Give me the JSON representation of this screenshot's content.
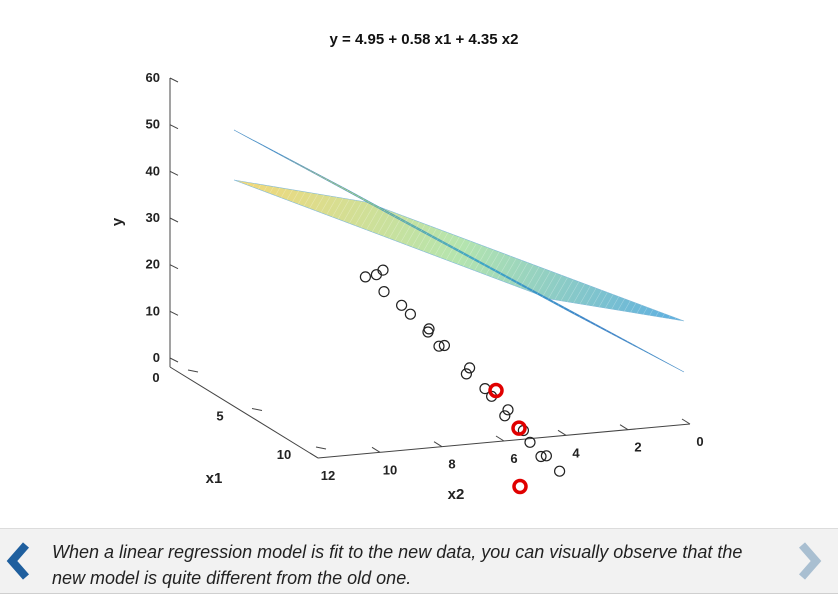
{
  "chart_data": {
    "type": "scatter",
    "title": "y = 4.95 + 0.58 x1 + 4.35 x2",
    "xlabel": "x1",
    "ylabel": "x2",
    "zlabel": "y",
    "x1_ticks": [
      "0",
      "5",
      "10"
    ],
    "x2_ticks": [
      "12",
      "10",
      "8",
      "6",
      "4",
      "2",
      "0"
    ],
    "y_ticks": [
      "0",
      "10",
      "20",
      "30",
      "40",
      "50",
      "60"
    ],
    "ylim": [
      0,
      60
    ],
    "planes": [
      {
        "corner_values": [
          49,
          20,
          8,
          34
        ]
      },
      {
        "corner_values": [
          38,
          20,
          16,
          31
        ]
      }
    ],
    "old_points": [
      {
        "x1": 2,
        "x2": 7.5,
        "y": 39
      },
      {
        "x1": 2,
        "x2": 7.8,
        "y": 37
      },
      {
        "x1": 3,
        "x2": 8.0,
        "y": 34
      },
      {
        "x1": 2,
        "x2": 8.3,
        "y": 35
      },
      {
        "x1": 3,
        "x2": 7.2,
        "y": 33
      },
      {
        "x1": 3,
        "x2": 6.8,
        "y": 32
      },
      {
        "x1": 4,
        "x2": 6.5,
        "y": 31
      },
      {
        "x1": 3,
        "x2": 6.0,
        "y": 30
      },
      {
        "x1": 4,
        "x2": 5.8,
        "y": 29
      },
      {
        "x1": 3,
        "x2": 5.5,
        "y": 28
      },
      {
        "x1": 5,
        "x2": 5.2,
        "y": 27
      },
      {
        "x1": 4,
        "x2": 4.8,
        "y": 25
      },
      {
        "x1": 5,
        "x2": 4.5,
        "y": 24
      },
      {
        "x1": 5,
        "x2": 4.2,
        "y": 23
      },
      {
        "x1": 6,
        "x2": 4.0,
        "y": 22
      },
      {
        "x1": 5,
        "x2": 3.6,
        "y": 20
      },
      {
        "x1": 6,
        "x2": 3.3,
        "y": 19
      },
      {
        "x1": 6,
        "x2": 3.0,
        "y": 17
      },
      {
        "x1": 7,
        "x2": 2.8,
        "y": 16
      },
      {
        "x1": 6,
        "x2": 2.5,
        "y": 15
      },
      {
        "x1": 7,
        "x2": 2.2,
        "y": 14
      }
    ],
    "new_points": [
      {
        "x1": 5,
        "x2": 4.0,
        "y": 25
      },
      {
        "x1": 6,
        "x2": 3.5,
        "y": 19
      },
      {
        "x1": 7,
        "x2": 4.0,
        "y": 5
      }
    ]
  },
  "colors": {
    "accent": "#1f5f9e",
    "new_point": "#e00000",
    "caption_bg": "#f2f2f2"
  },
  "caption": {
    "text": "When a linear regression model is fit to the new data, you can visually observe that the new model is quite different from the old one.",
    "prev_icon": "chevron-left-icon",
    "next_icon": "chevron-right-icon"
  }
}
